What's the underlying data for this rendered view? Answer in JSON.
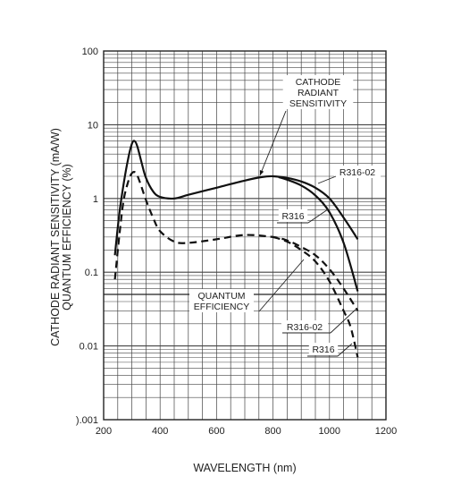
{
  "chart_data": {
    "type": "line",
    "xlabel": "WAVELENGTH (nm)",
    "ylabel_line1": "CATHODE RADIANT SENSITIVITY (mA/W)",
    "ylabel_line2": "QUANTUM EFFICIENCY (%)",
    "x_scale": "linear",
    "y_scale": "log",
    "xlim": [
      200,
      1200
    ],
    "ylim": [
      0.001,
      100
    ],
    "x_ticks": [
      200,
      400,
      600,
      800,
      1000,
      1200
    ],
    "y_ticks": [
      0.001,
      0.01,
      0.1,
      1,
      10,
      100
    ],
    "y_tick_labels": [
      ").001",
      "0.01",
      "0.1",
      "1",
      "10",
      "100"
    ],
    "grid": true,
    "series": [
      {
        "name": "R316-02",
        "group": "CATHODE RADIANT SENSITIVITY",
        "style": "solid",
        "x": [
          240,
          255,
          270,
          285,
          300,
          310,
          320,
          335,
          350,
          375,
          400,
          450,
          500,
          600,
          700,
          760,
          800,
          850,
          900,
          950,
          1000,
          1050,
          1100
        ],
        "y": [
          0.17,
          0.6,
          1.5,
          3.2,
          5.5,
          6.0,
          5.0,
          3.0,
          1.9,
          1.25,
          1.05,
          1.0,
          1.12,
          1.4,
          1.75,
          1.95,
          2.0,
          1.9,
          1.7,
          1.4,
          1.0,
          0.55,
          0.28
        ]
      },
      {
        "name": "R316",
        "group": "CATHODE RADIANT SENSITIVITY",
        "style": "solid",
        "x": [
          820,
          850,
          900,
          950,
          1000,
          1050,
          1100
        ],
        "y": [
          1.95,
          1.8,
          1.5,
          1.1,
          0.65,
          0.25,
          0.055
        ]
      },
      {
        "name": "R316-02",
        "group": "QUANTUM EFFICIENCY",
        "style": "dashed",
        "x": [
          240,
          255,
          270,
          285,
          300,
          315,
          330,
          350,
          375,
          400,
          450,
          500,
          600,
          700,
          800,
          850,
          900,
          950,
          1000,
          1050,
          1100
        ],
        "y": [
          0.08,
          0.3,
          0.9,
          1.6,
          2.2,
          2.2,
          1.6,
          0.95,
          0.55,
          0.36,
          0.26,
          0.25,
          0.28,
          0.32,
          0.3,
          0.27,
          0.22,
          0.17,
          0.11,
          0.06,
          0.03
        ]
      },
      {
        "name": "R316",
        "group": "QUANTUM EFFICIENCY",
        "style": "dashed",
        "x": [
          800,
          850,
          900,
          950,
          1000,
          1050,
          1075,
          1100
        ],
        "y": [
          0.3,
          0.26,
          0.2,
          0.14,
          0.075,
          0.03,
          0.018,
          0.007
        ]
      }
    ],
    "annotations": {
      "cathode_lines": [
        "CATHODE",
        "RADIANT",
        "SENSITIVITY"
      ],
      "quantum_lines": [
        "QUANTUM",
        "EFFICIENCY"
      ],
      "r316_02_upper": "R316-02",
      "r316_upper": "R316",
      "r316_02_lower": "R316-02",
      "r316_lower": "R316"
    }
  }
}
